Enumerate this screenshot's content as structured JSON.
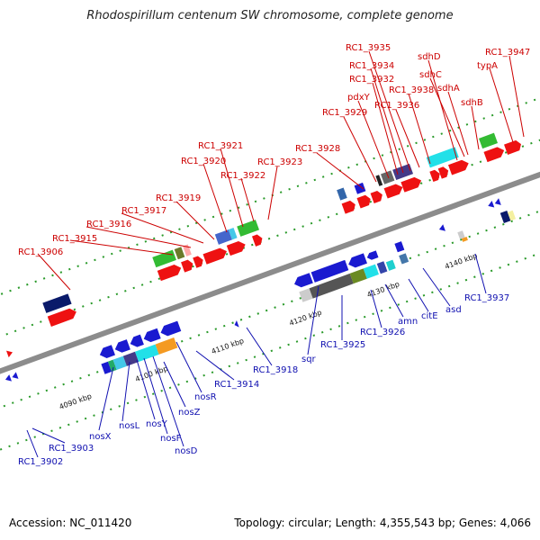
{
  "header": {
    "title": "Rhodospirillum centenum SW chromosome, complete genome"
  },
  "footer": {
    "accession": "Accession: NC_011420",
    "summary": "Topology: circular; Length: 4,355,543 bp; Genes: 4,066"
  },
  "colors": {
    "axis": "#8c8c8c",
    "top_label": "#cc0000",
    "bottom_label": "#1010b0",
    "track_dot": "#2a9a2a"
  },
  "scale_ticks": [
    "4090 kbp",
    "4100 kbp",
    "4110 kbp",
    "4120 kbp",
    "4130 kbp",
    "4140 kbp"
  ],
  "top_labels": [
    "RC1_3906",
    "RC1_3915",
    "RC1_3916",
    "RC1_3917",
    "RC1_3919",
    "RC1_3920",
    "RC1_3921",
    "RC1_3922",
    "RC1_3923",
    "RC1_3928",
    "RC1_3929",
    "pdxY",
    "RC1_3932",
    "RC1_3934",
    "RC1_3935",
    "RC1_3936",
    "RC1_3938",
    "sdhD",
    "sdhC",
    "sdhA",
    "sdhB",
    "typA",
    "RC1_3947"
  ],
  "bottom_labels": [
    "RC1_3902",
    "RC1_3903",
    "nosX",
    "nosL",
    "nosY",
    "nosF",
    "nosD",
    "nosZ",
    "nosR",
    "RC1_3914",
    "RC1_3918",
    "sqr",
    "RC1_3925",
    "RC1_3926",
    "amn",
    "citE",
    "asd",
    "RC1_3937"
  ]
}
